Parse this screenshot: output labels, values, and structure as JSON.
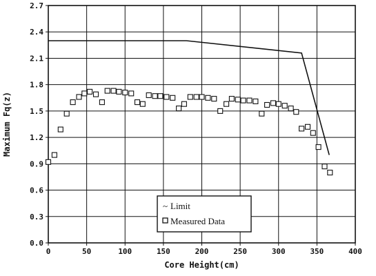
{
  "chart_data": {
    "type": "scatter",
    "xlabel": "Core Height(cm)",
    "ylabel": "Maximum Fq(z)",
    "xlim": [
      0,
      400
    ],
    "ylim": [
      0.0,
      2.7
    ],
    "x_ticks": [
      "0",
      "50",
      "100",
      "150",
      "200",
      "250",
      "300",
      "350",
      "400"
    ],
    "y_ticks": [
      "0.0",
      "0.3",
      "0.6",
      "0.9",
      "1.2",
      "1.5",
      "1.8",
      "2.1",
      "2.4",
      "2.7"
    ],
    "grid": true,
    "legend_placement": "bottom-center",
    "series": [
      {
        "name": "Limit",
        "style": "line",
        "points": [
          [
            0,
            2.3
          ],
          [
            180,
            2.3
          ],
          [
            330,
            2.16
          ],
          [
            366,
            1.0
          ]
        ]
      },
      {
        "name": "Measured Data",
        "style": "open-square",
        "points": [
          [
            0,
            0.92
          ],
          [
            8,
            1.0
          ],
          [
            16,
            1.29
          ],
          [
            24,
            1.47
          ],
          [
            32,
            1.6
          ],
          [
            40,
            1.66
          ],
          [
            47,
            1.7
          ],
          [
            54,
            1.72
          ],
          [
            62,
            1.69
          ],
          [
            70,
            1.6
          ],
          [
            77,
            1.73
          ],
          [
            85,
            1.73
          ],
          [
            92,
            1.72
          ],
          [
            100,
            1.71
          ],
          [
            108,
            1.7
          ],
          [
            116,
            1.6
          ],
          [
            123,
            1.58
          ],
          [
            131,
            1.68
          ],
          [
            139,
            1.67
          ],
          [
            146,
            1.67
          ],
          [
            154,
            1.66
          ],
          [
            162,
            1.65
          ],
          [
            170,
            1.53
          ],
          [
            177,
            1.58
          ],
          [
            185,
            1.66
          ],
          [
            193,
            1.66
          ],
          [
            200,
            1.66
          ],
          [
            208,
            1.65
          ],
          [
            216,
            1.64
          ],
          [
            224,
            1.5
          ],
          [
            232,
            1.58
          ],
          [
            239,
            1.64
          ],
          [
            247,
            1.63
          ],
          [
            254,
            1.62
          ],
          [
            262,
            1.62
          ],
          [
            270,
            1.61
          ],
          [
            278,
            1.47
          ],
          [
            285,
            1.57
          ],
          [
            293,
            1.59
          ],
          [
            300,
            1.58
          ],
          [
            308,
            1.56
          ],
          [
            316,
            1.53
          ],
          [
            323,
            1.49
          ],
          [
            330,
            1.3
          ],
          [
            338,
            1.32
          ],
          [
            345,
            1.25
          ],
          [
            352,
            1.09
          ],
          [
            360,
            0.87
          ],
          [
            367,
            0.8
          ]
        ]
      }
    ],
    "legend": {
      "limit_label": "Limit",
      "limit_marker": "~",
      "measured_label": "Measured Data"
    }
  }
}
